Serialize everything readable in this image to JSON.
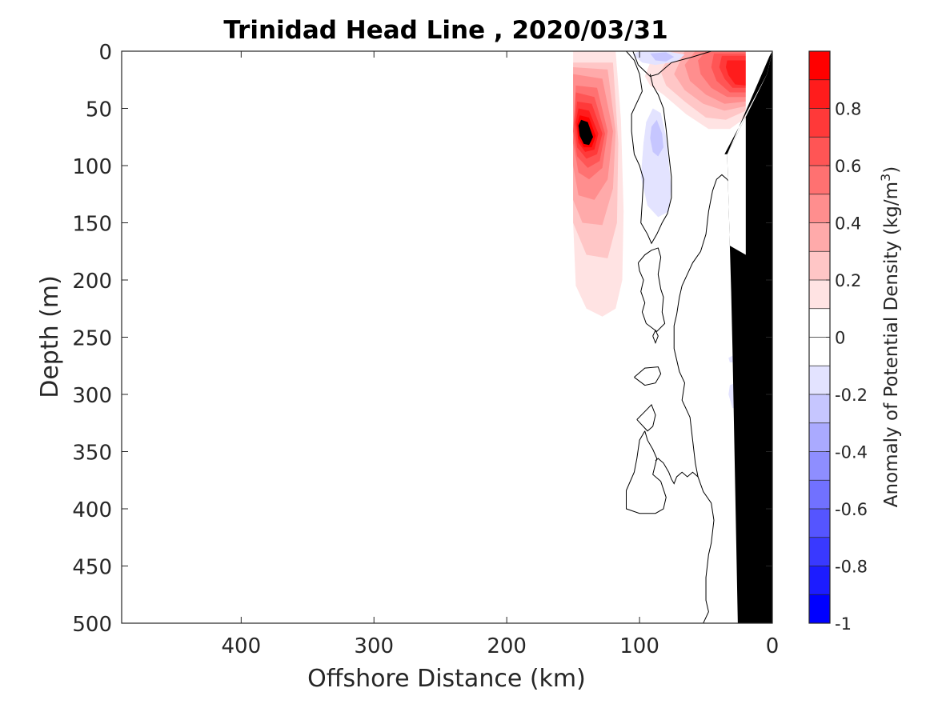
{
  "chart_data": {
    "type": "heatmap",
    "subtype": "filled-contour section",
    "title": "Trinidad Head Line , 2020/03/31",
    "xlabel": "Offshore Distance (km)",
    "ylabel": "Depth (m)",
    "xlim": [
      490,
      0
    ],
    "x_reversed": true,
    "ylim": [
      0,
      500
    ],
    "y_reversed": true,
    "x_ticks": [
      400,
      300,
      200,
      100,
      0
    ],
    "y_ticks": [
      0,
      50,
      100,
      150,
      200,
      250,
      300,
      350,
      400,
      450,
      500
    ],
    "colorbar": {
      "label": "Anomaly of Potential Density",
      "label_units": "(kg/m",
      "label_units_sup": "3",
      "label_units_close": ")",
      "range": [
        -1,
        1
      ],
      "ticks": [
        0.8,
        0.6,
        0.4,
        0.2,
        0,
        -0.2,
        -0.4,
        -0.6,
        -0.8,
        -1
      ],
      "tick_labels": [
        "0.8",
        "0.6",
        "0.4",
        "0.2",
        "0",
        "-0.2",
        "-0.4",
        "-0.6",
        "-0.8",
        "-1"
      ],
      "levels": [
        -1,
        -0.9,
        -0.8,
        -0.7,
        -0.6,
        -0.5,
        -0.4,
        -0.3,
        -0.2,
        -0.1,
        0,
        0.1,
        0.2,
        0.3,
        0.4,
        0.5,
        0.6,
        0.7,
        0.8,
        0.9,
        1.0
      ],
      "colors_neg_to_pos": [
        "#0000ff",
        "#1c1cff",
        "#3939ff",
        "#5555ff",
        "#7171ff",
        "#8e8eff",
        "#aaaaff",
        "#c6c6ff",
        "#e3e3ff",
        "#ffffff",
        "#ffffff",
        "#ffe3e3",
        "#ffc6c6",
        "#ffaaaa",
        "#ff8e8e",
        "#ff7171",
        "#ff5555",
        "#ff3939",
        "#ff1c1c",
        "#ff0000"
      ]
    },
    "positive_anomalies": [
      {
        "center_km": 138,
        "center_depth_m": 75,
        "peak": 1.0,
        "extent_km": [
          150,
          108
        ],
        "extent_depth_m": [
          0,
          230
        ]
      },
      {
        "center_km": 28,
        "center_depth_m": 18,
        "peak": 0.8,
        "extent_km": [
          80,
          20
        ],
        "extent_depth_m": [
          0,
          60
        ]
      }
    ],
    "negative_anomalies": [
      {
        "center_km": 82,
        "center_depth_m": 5,
        "peak": -0.2
      },
      {
        "center_km": 87,
        "center_depth_m": 75,
        "peak": -0.2
      },
      {
        "center_km": 87,
        "center_depth_m": 120,
        "peak": -0.1
      },
      {
        "center_km": 25,
        "center_depth_m": 280,
        "peak": -0.1
      },
      {
        "center_km": 25,
        "center_depth_m": 305,
        "peak": -0.1
      }
    ],
    "zero_contours": true,
    "bathymetry_fill": "#000000",
    "grid": false
  }
}
